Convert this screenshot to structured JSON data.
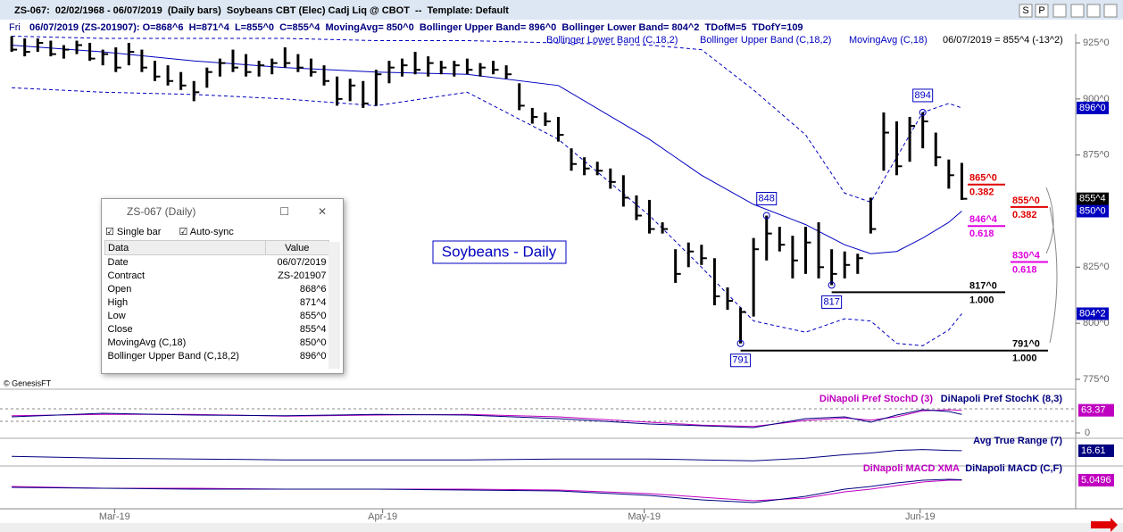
{
  "window": {
    "title": "ZS-067:  02/02/1968 - 06/07/2019  (Daily bars)  Soybeans CBT (Elec) Cadj Liq @ CBOT  --  Template: Default",
    "buttons": [
      "S",
      "P"
    ]
  },
  "info_line": {
    "day": "Fri",
    "text": "06/07/2019 (ZS-201907): O=868^6  H=871^4  L=855^0  C=855^4  MovingAvg= 850^0  Bollinger Upper Band= 896^0  Bollinger Lower Band= 804^2  TDofM=5  TDofY=109"
  },
  "last_quote": "06/07/2019 = 855^4 (-13^2)",
  "chart_data": {
    "type": "ohlc",
    "annotation": "Soybeans - Daily",
    "copyright": "© GenesisFT",
    "xlim": [
      -0.9,
      81.75
    ],
    "ylim": [
      771,
      929
    ],
    "xticks": [
      {
        "value": 7.9,
        "label": "Mar-19"
      },
      {
        "value": 28.5,
        "label": "Apr-19"
      },
      {
        "value": 48.6,
        "label": "May-19"
      },
      {
        "value": 69.8,
        "label": "Jun-19"
      }
    ],
    "yticks": [
      {
        "value": 925,
        "label": "925^0"
      },
      {
        "value": 900,
        "label": "900^0"
      },
      {
        "value": 875,
        "label": "875^0"
      },
      {
        "value": 850,
        "label": "850^0"
      },
      {
        "value": 825,
        "label": "825^0"
      },
      {
        "value": 800,
        "label": "800^0"
      },
      {
        "value": 775,
        "label": "775^0"
      }
    ],
    "bars": {
      "high": [
        928,
        927,
        927,
        926,
        924,
        926,
        925,
        922,
        923,
        925,
        922,
        917,
        915,
        912,
        908,
        914,
        918,
        922,
        920,
        917,
        918,
        923,
        920,
        918,
        915,
        910,
        909,
        908,
        913,
        917,
        918,
        921,
        919,
        917,
        917,
        918,
        916,
        917,
        915,
        907,
        896,
        894,
        892,
        878,
        874,
        872,
        869,
        866,
        857,
        855,
        845,
        833,
        836,
        835,
        829,
        816,
        807,
        838,
        848,
        843,
        839,
        843,
        845,
        833,
        832,
        831,
        856,
        894,
        890,
        892,
        894,
        885,
        873,
        871.5
      ],
      "low": [
        921,
        919,
        921,
        919,
        918,
        920,
        917,
        915,
        912,
        915,
        912,
        908,
        906,
        904,
        899,
        905,
        910,
        912,
        910,
        910,
        911,
        914,
        912,
        910,
        906,
        897,
        899,
        896,
        897,
        907,
        910,
        911,
        910,
        911,
        910,
        911,
        910,
        911,
        909,
        895,
        889,
        888,
        881,
        868,
        866,
        866,
        860,
        852,
        846,
        840,
        840,
        818,
        825,
        826,
        808,
        806,
        791,
        803,
        828,
        832,
        820,
        822,
        820,
        817,
        820,
        822,
        840,
        868,
        866,
        872,
        878,
        870,
        860,
        855
      ],
      "close": [
        922,
        921,
        925,
        920,
        922,
        924,
        918,
        920,
        914,
        921,
        914,
        910,
        908,
        906,
        903,
        912,
        916,
        914,
        912,
        915,
        916,
        916,
        914,
        912,
        908,
        900,
        906,
        898,
        911,
        914,
        915,
        913,
        916,
        914,
        915,
        913,
        914,
        913,
        911,
        897,
        892,
        890,
        884,
        871,
        869,
        868,
        863,
        856,
        848,
        842,
        842,
        822,
        832,
        829,
        812,
        810,
        805,
        833,
        840,
        835,
        828,
        836,
        825,
        822,
        826,
        829,
        842,
        885,
        870,
        888,
        890,
        874,
        866,
        855.5
      ],
      "color": "#000000"
    },
    "indicator_x": [
      0,
      7,
      14,
      21,
      28,
      35,
      42,
      49,
      53,
      57,
      61,
      64,
      66,
      68,
      70,
      72,
      73
    ],
    "overlays": [
      {
        "name": "Bollinger Lower Band (C,18,2)",
        "color": "#0000c0",
        "dashed": true,
        "values": [
          905,
          903,
          902,
          900,
          897,
          903,
          882,
          848,
          825,
          801,
          796,
          802,
          801,
          791,
          790,
          797,
          804.25
        ]
      },
      {
        "name": "Bollinger Upper Band (C,18,2)",
        "color": "#0000c0",
        "dashed": true,
        "values": [
          928,
          927,
          927,
          927,
          926,
          926,
          925,
          924,
          922,
          904,
          884,
          858,
          854,
          874,
          894,
          898,
          896
        ]
      },
      {
        "name": "MovingAvg (C,18)",
        "color": "#0000c0",
        "dashed": false,
        "values": [
          924,
          921,
          917,
          914,
          912,
          911,
          906,
          882,
          866,
          853,
          844,
          835,
          831,
          832,
          838,
          845,
          850
        ]
      }
    ],
    "axis_tags": [
      {
        "value": 896,
        "label": "896^0",
        "color": "#0000c0"
      },
      {
        "value": 855.5,
        "label": "855^4",
        "color": "#000000"
      },
      {
        "value": 850,
        "label": "850^0",
        "color": "#0000c0"
      },
      {
        "value": 804.25,
        "label": "804^2",
        "color": "#0000c0"
      }
    ],
    "pivots": [
      {
        "bar": 58,
        "value": 848,
        "kind": "high"
      },
      {
        "bar": 70,
        "value": 894,
        "kind": "high"
      },
      {
        "bar": 63,
        "value": 817,
        "kind": "low"
      },
      {
        "bar": 56,
        "value": 791,
        "kind": "low"
      }
    ],
    "fibs": [
      {
        "price": 865,
        "price_label": "865^0",
        "ratio": "0.382",
        "color": "#e00000"
      },
      {
        "price": 855,
        "price_label": "855^0",
        "ratio": "0.382",
        "color": "#e00000"
      },
      {
        "price": 846.5,
        "price_label": "846^4",
        "ratio": "0.618",
        "color": "#e000e0"
      },
      {
        "price": 830.5,
        "price_label": "830^4",
        "ratio": "0.618",
        "color": "#e000e0"
      },
      {
        "price": 817,
        "price_label": "817^0",
        "ratio": "1.000",
        "color": "#000000"
      },
      {
        "price": 791,
        "price_label": "791^0",
        "ratio": "1.000",
        "color": "#000000"
      }
    ],
    "panels": [
      {
        "ylim": [
          0,
          100
        ],
        "yticks": [
          0
        ],
        "series": [
          {
            "name": "DiNapoli Pref StochD (3)",
            "color": "#c000c0",
            "values": [
              48,
              52,
              52,
              47,
              50,
              52,
              45,
              30,
              22,
              18,
              35,
              42,
              36,
              45,
              62,
              65,
              63.37
            ]
          },
          {
            "name": "DiNapoli Pref StochK (8,3)",
            "color": "#000080",
            "values": [
              45,
              55,
              50,
              48,
              52,
              50,
              40,
              25,
              20,
              15,
              40,
              45,
              30,
              50,
              65,
              60,
              52
            ]
          }
        ]
      },
      {
        "ylim": [
          0,
          30
        ],
        "yticks": [],
        "series": [
          {
            "name": "Avg True Range (7)",
            "color": "#000080",
            "values": [
              10,
              8,
              7,
              6,
              6,
              6,
              7,
              7,
              6,
              5,
              8,
              12,
              14,
              17,
              18,
              17,
              16.61
            ]
          }
        ]
      },
      {
        "ylim": [
          -25,
          20
        ],
        "yticks": [],
        "series": [
          {
            "name": "DiNapoli MACD XMA",
            "color": "#c000c0",
            "values": [
              -2,
              -4,
              -4,
              -5,
              -5,
              -5,
              -6,
              -10,
              -14,
              -18,
              -15,
              -8,
              -5,
              -1,
              3,
              5,
              5.0496
            ]
          },
          {
            "name": "DiNapoli MACD (C,F)",
            "color": "#000080",
            "values": [
              -3,
              -4,
              -5,
              -5,
              -5,
              -6,
              -7,
              -12,
              -17,
              -20,
              -13,
              -5,
              -2,
              2,
              5,
              6,
              5.5
            ]
          }
        ]
      }
    ]
  },
  "data_window": {
    "title": "ZS-067 (Daily)",
    "options": [
      "Single bar",
      "Auto-sync"
    ],
    "header": [
      "Data",
      "Value"
    ],
    "rows": [
      [
        "Date",
        "06/07/2019"
      ],
      [
        "Contract",
        "ZS-201907"
      ],
      [
        "Open",
        "868^6"
      ],
      [
        "High",
        "871^4"
      ],
      [
        "Low",
        "855^0"
      ],
      [
        "Close",
        "855^4"
      ],
      [
        "MovingAvg (C,18)",
        "850^0"
      ],
      [
        "Bollinger Upper Band (C,18,2)",
        "896^0"
      ]
    ]
  }
}
